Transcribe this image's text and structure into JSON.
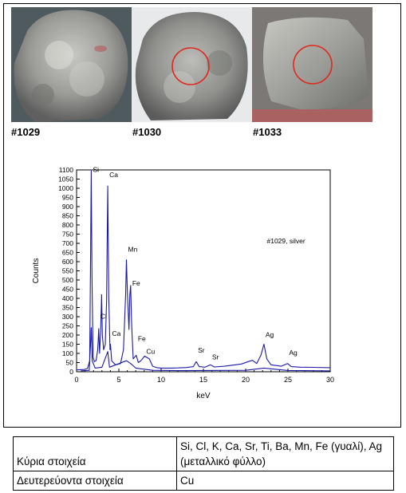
{
  "photos": [
    {
      "label": "#1029",
      "marked": false
    },
    {
      "label": "#1030",
      "marked": true
    },
    {
      "label": "#1033",
      "marked": true
    }
  ],
  "chart_data": {
    "type": "line",
    "title": "",
    "annotation": "#1029, silver",
    "xlabel": "keV",
    "ylabel": "Counts",
    "xlim": [
      0,
      30
    ],
    "ylim": [
      0,
      1100
    ],
    "xticks": [
      0,
      5,
      10,
      15,
      20,
      25,
      30
    ],
    "yticks": [
      0,
      50,
      100,
      150,
      200,
      250,
      300,
      350,
      400,
      450,
      500,
      550,
      600,
      650,
      700,
      750,
      800,
      850,
      900,
      950,
      1000,
      1050,
      1100
    ],
    "grid": false,
    "line_color": "#1a1aa8",
    "peak_labels": [
      {
        "text": "Si",
        "x": 1.74,
        "y": 1090
      },
      {
        "text": "Ca",
        "x": 3.69,
        "y": 1060
      },
      {
        "text": "Mn",
        "x": 5.9,
        "y": 655
      },
      {
        "text": "Fe",
        "x": 6.4,
        "y": 470
      },
      {
        "text": "Cl",
        "x": 2.62,
        "y": 290
      },
      {
        "text": "Ca",
        "x": 4.01,
        "y": 195
      },
      {
        "text": "Fe",
        "x": 7.06,
        "y": 168
      },
      {
        "text": "Cu",
        "x": 8.05,
        "y": 98
      },
      {
        "text": "Sr",
        "x": 14.16,
        "y": 105
      },
      {
        "text": "Sr",
        "x": 15.84,
        "y": 68
      },
      {
        "text": "Ag",
        "x": 22.16,
        "y": 190
      },
      {
        "text": "Ag",
        "x": 24.94,
        "y": 92
      }
    ],
    "series": [
      {
        "values": [
          [
            0,
            10
          ],
          [
            0.9,
            12
          ],
          [
            1.3,
            18
          ],
          [
            1.55,
            60
          ],
          [
            1.66,
            650
          ],
          [
            1.74,
            1095
          ],
          [
            1.82,
            520
          ],
          [
            1.95,
            80
          ],
          [
            2.1,
            55
          ],
          [
            2.3,
            60
          ],
          [
            2.5,
            120
          ],
          [
            2.62,
            235
          ],
          [
            2.72,
            100
          ],
          [
            2.85,
            220
          ],
          [
            2.96,
            420
          ],
          [
            3.05,
            200
          ],
          [
            3.2,
            120
          ],
          [
            3.4,
            150
          ],
          [
            3.55,
            380
          ],
          [
            3.69,
            1012
          ],
          [
            3.8,
            420
          ],
          [
            3.95,
            120
          ],
          [
            4.01,
            150
          ],
          [
            4.15,
            60
          ],
          [
            4.6,
            38
          ],
          [
            5.2,
            45
          ],
          [
            5.55,
            120
          ],
          [
            5.8,
            420
          ],
          [
            5.9,
            610
          ],
          [
            6.02,
            420
          ],
          [
            6.2,
            230
          ],
          [
            6.3,
            420
          ],
          [
            6.4,
            470
          ],
          [
            6.52,
            250
          ],
          [
            6.7,
            70
          ],
          [
            7.06,
            90
          ],
          [
            7.3,
            50
          ],
          [
            7.6,
            60
          ],
          [
            8.05,
            85
          ],
          [
            8.6,
            70
          ],
          [
            9.0,
            30
          ],
          [
            9.5,
            22
          ],
          [
            10,
            20
          ],
          [
            11,
            20
          ],
          [
            12,
            21
          ],
          [
            13,
            23
          ],
          [
            13.8,
            28
          ],
          [
            14.16,
            55
          ],
          [
            14.5,
            28
          ],
          [
            15.2,
            25
          ],
          [
            15.84,
            38
          ],
          [
            16.3,
            26
          ],
          [
            17.5,
            30
          ],
          [
            18.5,
            36
          ],
          [
            19.5,
            42
          ],
          [
            20.3,
            55
          ],
          [
            20.8,
            62
          ],
          [
            21.3,
            45
          ],
          [
            21.8,
            90
          ],
          [
            22.16,
            150
          ],
          [
            22.5,
            70
          ],
          [
            23,
            38
          ],
          [
            24.2,
            30
          ],
          [
            24.94,
            45
          ],
          [
            25.4,
            28
          ],
          [
            26.5,
            25
          ],
          [
            28,
            24
          ],
          [
            30,
            22
          ]
        ]
      },
      {
        "values": [
          [
            0.5,
            5
          ],
          [
            1.5,
            8
          ],
          [
            1.66,
            160
          ],
          [
            1.74,
            240
          ],
          [
            1.85,
            60
          ],
          [
            2.2,
            20
          ],
          [
            3.0,
            25
          ],
          [
            3.69,
            110
          ],
          [
            3.9,
            25
          ],
          [
            5.9,
            60
          ],
          [
            6.4,
            45
          ],
          [
            7.0,
            20
          ],
          [
            9,
            8
          ],
          [
            12,
            6
          ],
          [
            20,
            8
          ],
          [
            22.16,
            20
          ],
          [
            25,
            7
          ],
          [
            30,
            5
          ]
        ]
      }
    ]
  },
  "table": {
    "rows": [
      {
        "label": "Κύρια στοιχεία",
        "value": "Si, Cl, K, Ca, Sr, Ti, Ba, Mn, Fe (γυαλί), Ag (μεταλλικό φύλλο)"
      },
      {
        "label": "Δευτερεύοντα στοιχεία",
        "value": "Cu"
      }
    ]
  }
}
